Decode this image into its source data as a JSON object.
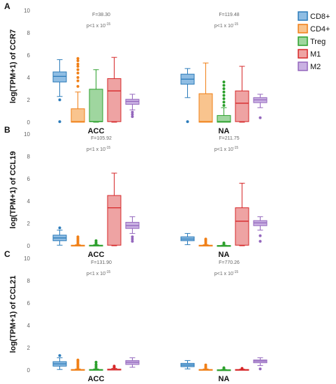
{
  "legend": [
    {
      "name": "CD8+",
      "stroke": "#2b7bba",
      "fill": "#8fbde3"
    },
    {
      "name": "CD4+",
      "stroke": "#f07f16",
      "fill": "#f9c48e"
    },
    {
      "name": "Treg",
      "stroke": "#2ca02c",
      "fill": "#9fd69f"
    },
    {
      "name": "M1",
      "stroke": "#d62728",
      "fill": "#eea3a3"
    },
    {
      "name": "M2",
      "stroke": "#9467bd",
      "fill": "#c9b1e2"
    }
  ],
  "chart_data": [
    {
      "type": "box",
      "panel": "A",
      "ylabel": "log(TPM+1) of CCR7",
      "ylim": [
        0,
        10
      ],
      "yticks": [
        0,
        2,
        4,
        6,
        8,
        10
      ],
      "categories": [
        "ACC",
        "NA"
      ],
      "annotations": [
        {
          "F": "F=38.30",
          "p": "p<1 x 10",
          "p_exp": "-15"
        },
        {
          "F": "F=119.48",
          "p": "p<1 x 10",
          "p_exp": "-15"
        }
      ],
      "groups": [
        {
          "category": "ACC",
          "boxes": [
            {
              "series": "CD8+",
              "min": 2.3,
              "q1": 3.6,
              "median": 4.1,
              "q3": 4.5,
              "max": 5.6,
              "outliers": [
                2.0,
                0.05
              ]
            },
            {
              "series": "CD4+",
              "min": 0.0,
              "q1": 0.0,
              "median": 0.05,
              "q3": 1.2,
              "max": 2.7,
              "outliers": [
                3.2,
                3.7,
                4.0,
                4.4,
                4.7,
                5.0,
                5.2,
                5.5,
                5.7
              ]
            },
            {
              "series": "Treg",
              "min": 0.0,
              "q1": 0.05,
              "median": 0.05,
              "q3": 2.95,
              "max": 4.7,
              "outliers": []
            },
            {
              "series": "M1",
              "min": 0.0,
              "q1": 0.05,
              "median": 2.8,
              "q3": 3.9,
              "max": 5.8,
              "outliers": []
            },
            {
              "series": "M2",
              "min": 1.1,
              "q1": 1.6,
              "median": 1.85,
              "q3": 2.05,
              "max": 2.5,
              "outliers": [
                0.9,
                0.7,
                0.5
              ]
            }
          ]
        },
        {
          "category": "NA",
          "boxes": [
            {
              "series": "CD8+",
              "min": 2.2,
              "q1": 3.4,
              "median": 3.85,
              "q3": 4.3,
              "max": 4.8,
              "outliers": [
                0.05
              ]
            },
            {
              "series": "CD4+",
              "min": 0.0,
              "q1": 0.0,
              "median": 0.05,
              "q3": 2.55,
              "max": 5.3,
              "outliers": []
            },
            {
              "series": "Treg",
              "min": 0.0,
              "q1": 0.0,
              "median": 0.05,
              "q3": 0.6,
              "max": 1.3,
              "outliers": [
                1.5,
                1.8,
                2.1,
                2.4,
                2.7,
                3.0,
                3.3,
                3.6
              ]
            },
            {
              "series": "M1",
              "min": 0.0,
              "q1": 0.05,
              "median": 1.7,
              "q3": 2.8,
              "max": 5.0,
              "outliers": []
            },
            {
              "series": "M2",
              "min": 1.3,
              "q1": 1.75,
              "median": 2.0,
              "q3": 2.2,
              "max": 2.5,
              "outliers": [
                0.4
              ]
            }
          ]
        }
      ]
    },
    {
      "type": "box",
      "panel": "B",
      "ylabel": "log(TPM+1) of CCL19",
      "ylim": [
        0,
        10
      ],
      "yticks": [
        0,
        2,
        4,
        6,
        8,
        10
      ],
      "categories": [
        "ACC",
        "NA"
      ],
      "annotations": [
        {
          "F": "F=105.92",
          "p": "p<1 x 10",
          "p_exp": "-15"
        },
        {
          "F": "F=211.75",
          "p": "p<1 x 10",
          "p_exp": "-15"
        }
      ],
      "groups": [
        {
          "category": "ACC",
          "boxes": [
            {
              "series": "CD8+",
              "min": 0.05,
              "q1": 0.45,
              "median": 0.7,
              "q3": 0.95,
              "max": 1.4,
              "outliers": [
                1.6
              ]
            },
            {
              "series": "CD4+",
              "min": 0.0,
              "q1": 0.0,
              "median": 0.02,
              "q3": 0.05,
              "max": 0.1,
              "outliers": [
                0.2,
                0.35,
                0.5,
                0.65,
                0.8
              ]
            },
            {
              "series": "Treg",
              "min": 0.0,
              "q1": 0.0,
              "median": 0.02,
              "q3": 0.05,
              "max": 0.1,
              "outliers": [
                0.2,
                0.3,
                0.45
              ]
            },
            {
              "series": "M1",
              "min": 0.0,
              "q1": 0.05,
              "median": 3.4,
              "q3": 4.5,
              "max": 6.5,
              "outliers": []
            },
            {
              "series": "M2",
              "min": 1.1,
              "q1": 1.55,
              "median": 1.8,
              "q3": 2.1,
              "max": 2.6,
              "outliers": [
                0.8,
                0.6,
                0.4
              ]
            }
          ]
        },
        {
          "category": "NA",
          "boxes": [
            {
              "series": "CD8+",
              "min": 0.1,
              "q1": 0.45,
              "median": 0.6,
              "q3": 0.8,
              "max": 1.1,
              "outliers": []
            },
            {
              "series": "CD4+",
              "min": 0.0,
              "q1": 0.0,
              "median": 0.02,
              "q3": 0.05,
              "max": 0.1,
              "outliers": [
                0.2,
                0.35,
                0.5,
                0.6
              ]
            },
            {
              "series": "Treg",
              "min": 0.0,
              "q1": 0.0,
              "median": 0.01,
              "q3": 0.02,
              "max": 0.05,
              "outliers": [
                0.15,
                0.25
              ]
            },
            {
              "series": "M1",
              "min": 0.0,
              "q1": 0.05,
              "median": 2.2,
              "q3": 3.4,
              "max": 5.6,
              "outliers": []
            },
            {
              "series": "M2",
              "min": 1.4,
              "q1": 1.8,
              "median": 2.05,
              "q3": 2.25,
              "max": 2.6,
              "outliers": [
                0.9,
                0.4
              ]
            }
          ]
        }
      ]
    },
    {
      "type": "box",
      "panel": "C",
      "ylabel": "log(TPM+1) of CCL21",
      "ylim": [
        0,
        10
      ],
      "yticks": [
        0,
        2,
        4,
        6,
        8,
        10
      ],
      "categories": [
        "ACC",
        "NA"
      ],
      "annotations": [
        {
          "F": "F=131.90",
          "p": "p<1 x 10",
          "p_exp": "-15"
        },
        {
          "F": "F=770.26",
          "p": "p<1 x 10",
          "p_exp": "-15"
        }
      ],
      "groups": [
        {
          "category": "ACC",
          "boxes": [
            {
              "series": "CD8+",
              "min": 0.05,
              "q1": 0.35,
              "median": 0.55,
              "q3": 0.75,
              "max": 1.1,
              "outliers": [
                1.3
              ]
            },
            {
              "series": "CD4+",
              "min": 0.0,
              "q1": 0.0,
              "median": 0.02,
              "q3": 0.05,
              "max": 0.1,
              "outliers": [
                0.2,
                0.35,
                0.5,
                0.65,
                0.8,
                0.9
              ]
            },
            {
              "series": "Treg",
              "min": 0.0,
              "q1": 0.0,
              "median": 0.02,
              "q3": 0.05,
              "max": 0.1,
              "outliers": [
                0.2,
                0.35,
                0.5,
                0.7
              ]
            },
            {
              "series": "M1",
              "min": 0.0,
              "q1": 0.0,
              "median": 0.02,
              "q3": 0.08,
              "max": 0.15,
              "outliers": [
                0.25,
                0.35
              ]
            },
            {
              "series": "M2",
              "min": 0.25,
              "q1": 0.5,
              "median": 0.7,
              "q3": 0.85,
              "max": 1.1,
              "outliers": []
            }
          ]
        },
        {
          "category": "NA",
          "boxes": [
            {
              "series": "CD8+",
              "min": 0.1,
              "q1": 0.3,
              "median": 0.45,
              "q3": 0.6,
              "max": 0.85,
              "outliers": []
            },
            {
              "series": "CD4+",
              "min": 0.0,
              "q1": 0.0,
              "median": 0.02,
              "q3": 0.05,
              "max": 0.1,
              "outliers": [
                0.2,
                0.3,
                0.45
              ]
            },
            {
              "series": "Treg",
              "min": 0.0,
              "q1": 0.0,
              "median": 0.01,
              "q3": 0.02,
              "max": 0.05,
              "outliers": [
                0.12,
                0.2
              ]
            },
            {
              "series": "M1",
              "min": 0.0,
              "q1": 0.0,
              "median": 0.02,
              "q3": 0.05,
              "max": 0.08,
              "outliers": [
                0.15
              ]
            },
            {
              "series": "M2",
              "min": 0.4,
              "q1": 0.65,
              "median": 0.8,
              "q3": 0.9,
              "max": 1.1,
              "outliers": [
                0.1
              ]
            }
          ]
        }
      ]
    }
  ]
}
